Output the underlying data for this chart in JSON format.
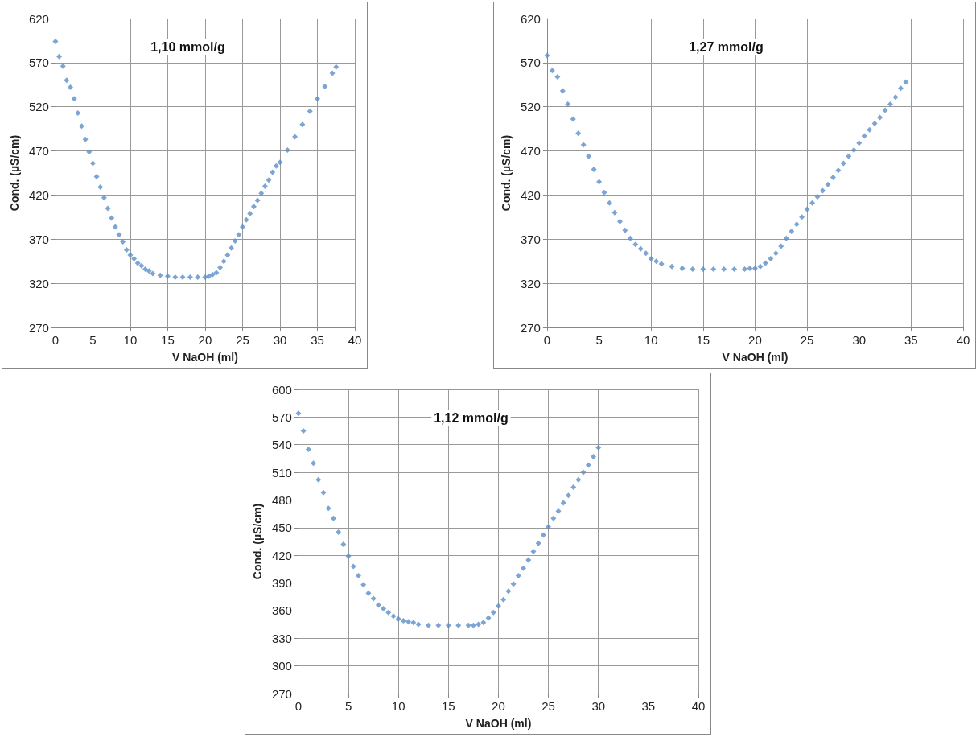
{
  "chart_data": [
    {
      "type": "scatter",
      "xlabel": "V NaOH (ml)",
      "ylabel": "Cond. (µS/cm)",
      "annotations": [
        "1,10 mmol/g"
      ],
      "xlim": [
        0,
        40
      ],
      "xticks": [
        0,
        5,
        10,
        15,
        20,
        25,
        30,
        35,
        40
      ],
      "ylim": [
        270,
        620
      ],
      "yticks": [
        270,
        320,
        370,
        420,
        470,
        520,
        570,
        620
      ],
      "grid": true,
      "marker": "diamond",
      "series": [
        {
          "color": "#5b8fc9",
          "x": [
            0,
            0.5,
            1,
            1.5,
            2,
            2.5,
            3,
            3.5,
            4,
            4.5,
            5,
            5.5,
            6,
            6.5,
            7,
            7.5,
            8,
            8.5,
            9,
            9.5,
            10,
            10.5,
            11,
            11.5,
            12,
            12.5,
            13,
            14,
            15,
            16,
            17,
            18,
            19,
            20,
            20.5,
            21,
            21.5,
            22,
            22.5,
            23,
            23.5,
            24,
            24.5,
            25,
            25.5,
            26,
            26.5,
            27,
            27.5,
            28,
            28.5,
            29,
            29.5,
            30,
            31,
            32,
            33,
            34,
            35,
            36,
            37,
            37.5
          ],
          "values": [
            594,
            577,
            566,
            550,
            542,
            529,
            513,
            498,
            483,
            469,
            456,
            441,
            429,
            417,
            405,
            394,
            384,
            375,
            367,
            358,
            352,
            348,
            343,
            340,
            336,
            334,
            331,
            329,
            328,
            327,
            327,
            327,
            327,
            327,
            328,
            330,
            332,
            338,
            345,
            352,
            360,
            368,
            375,
            384,
            392,
            399,
            407,
            414,
            422,
            430,
            437,
            446,
            453,
            457,
            471,
            486,
            500,
            515,
            529,
            543,
            558,
            565
          ]
        }
      ]
    },
    {
      "type": "scatter",
      "xlabel": "V NaOH (ml)",
      "ylabel": "Cond. (µS/cm)",
      "annotations": [
        "1,27 mmol/g"
      ],
      "xlim": [
        0,
        40
      ],
      "xticks": [
        0,
        5,
        10,
        15,
        20,
        25,
        30,
        35,
        40
      ],
      "ylim": [
        270,
        620
      ],
      "yticks": [
        270,
        320,
        370,
        420,
        470,
        520,
        570,
        620
      ],
      "grid": true,
      "marker": "diamond",
      "series": [
        {
          "color": "#5b8fc9",
          "x": [
            0,
            0.5,
            1,
            1.5,
            2,
            2.5,
            3,
            3.5,
            4,
            4.5,
            5,
            5.5,
            6,
            6.5,
            7,
            7.5,
            8,
            8.5,
            9,
            9.5,
            10,
            10.5,
            11,
            12,
            13,
            14,
            15,
            16,
            17,
            18,
            19,
            19.5,
            20,
            20.5,
            21,
            21.5,
            22,
            22.5,
            23,
            23.5,
            24,
            24.5,
            25,
            25.5,
            26,
            26.5,
            27,
            27.5,
            28,
            28.5,
            29,
            29.5,
            30,
            30.5,
            31,
            31.5,
            32,
            32.5,
            33,
            33.5,
            34,
            34.5
          ],
          "values": [
            578,
            561,
            554,
            538,
            523,
            506,
            490,
            477,
            464,
            449,
            435,
            423,
            411,
            400,
            390,
            380,
            371,
            364,
            359,
            354,
            348,
            345,
            342,
            339,
            337,
            336,
            336,
            336,
            336,
            336,
            336,
            337,
            337,
            339,
            343,
            348,
            354,
            362,
            371,
            379,
            387,
            395,
            404,
            411,
            418,
            425,
            432,
            440,
            448,
            456,
            464,
            471,
            479,
            487,
            494,
            501,
            508,
            516,
            523,
            531,
            541,
            548
          ]
        }
      ]
    },
    {
      "type": "scatter",
      "xlabel": "V NaOH (ml)",
      "ylabel": "Cond. (µS/cm)",
      "annotations": [
        "1,12 mmol/g"
      ],
      "xlim": [
        0,
        40
      ],
      "xticks": [
        0,
        5,
        10,
        15,
        20,
        25,
        30,
        35,
        40
      ],
      "ylim": [
        270,
        600
      ],
      "yticks": [
        270,
        300,
        330,
        360,
        390,
        420,
        450,
        480,
        510,
        540,
        570,
        600
      ],
      "grid": true,
      "marker": "diamond",
      "series": [
        {
          "color": "#5b8fc9",
          "x": [
            0,
            0.5,
            1,
            1.5,
            2,
            2.5,
            3,
            3.5,
            4,
            4.5,
            5,
            5.5,
            6,
            6.5,
            7,
            7.5,
            8,
            8.5,
            9,
            9.5,
            10,
            10.5,
            11,
            11.5,
            12,
            13,
            14,
            15,
            16,
            17,
            17.5,
            18,
            18.5,
            19,
            19.5,
            20,
            20.5,
            21,
            21.5,
            22,
            22.5,
            23,
            23.5,
            24,
            24.5,
            25,
            25.5,
            26,
            26.5,
            27,
            27.5,
            28,
            28.5,
            29,
            29.5,
            30
          ],
          "values": [
            574,
            555,
            535,
            520,
            502,
            488,
            471,
            460,
            445,
            432,
            419,
            408,
            398,
            388,
            379,
            373,
            366,
            362,
            358,
            354,
            351,
            349,
            348,
            347,
            345,
            344,
            344,
            344,
            344,
            344,
            344,
            345,
            347,
            352,
            358,
            365,
            372,
            381,
            389,
            398,
            406,
            415,
            424,
            433,
            442,
            451,
            460,
            468,
            477,
            485,
            494,
            502,
            510,
            518,
            527,
            537
          ]
        }
      ]
    }
  ]
}
